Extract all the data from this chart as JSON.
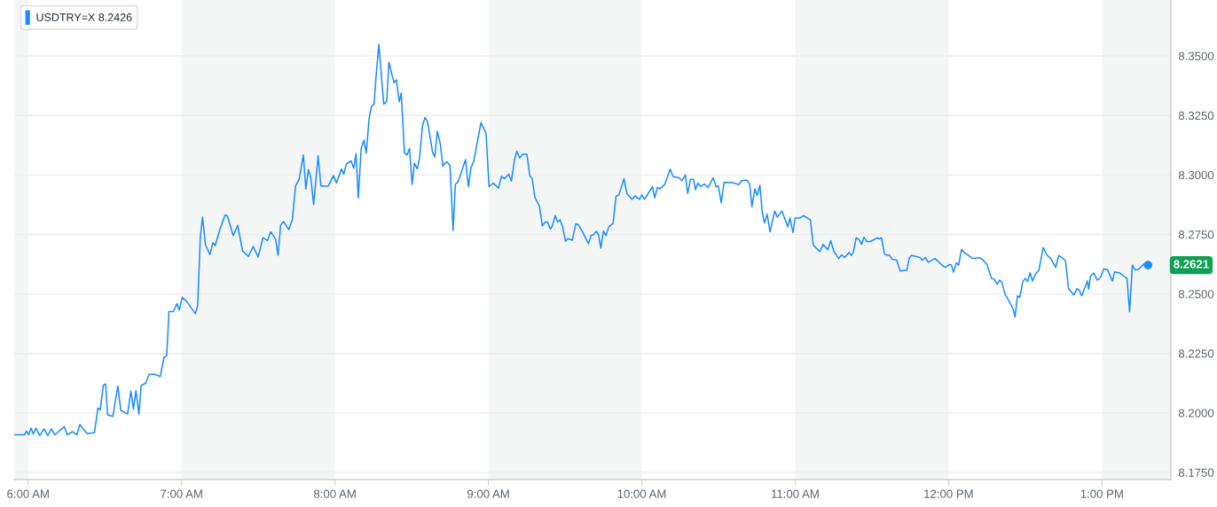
{
  "chart_data": {
    "type": "line",
    "xlim": [
      5.909,
      13.449
    ],
    "ylim": [
      8.172,
      8.3735
    ],
    "xticks": [
      {
        "value": 6,
        "label": "6:00 AM"
      },
      {
        "value": 7,
        "label": "7:00 AM"
      },
      {
        "value": 8,
        "label": "8:00 AM"
      },
      {
        "value": 9,
        "label": "9:00 AM"
      },
      {
        "value": 10,
        "label": "10:00 AM"
      },
      {
        "value": 11,
        "label": "11:00 AM"
      },
      {
        "value": 12,
        "label": "12:00 PM"
      },
      {
        "value": 13,
        "label": "1:00 PM"
      }
    ],
    "yticks": [
      {
        "value": 8.175,
        "label": "8.1750"
      },
      {
        "value": 8.2,
        "label": "8.2000"
      },
      {
        "value": 8.225,
        "label": "8.2250"
      },
      {
        "value": 8.25,
        "label": "8.2500"
      },
      {
        "value": 8.275,
        "label": "8.2750"
      },
      {
        "value": 8.3,
        "label": "8.3000"
      },
      {
        "value": 8.325,
        "label": "8.3250"
      },
      {
        "value": 8.35,
        "label": "8.3500"
      }
    ],
    "grid": "y",
    "legend": "top left",
    "bands": [
      {
        "axis": "x",
        "from": 5.909,
        "to": 6,
        "color": "#f4f5f5"
      },
      {
        "axis": "x",
        "from": 7,
        "to": 8,
        "color": "#f4f5f5"
      },
      {
        "axis": "x",
        "from": 9,
        "to": 10,
        "color": "#f4f5f5"
      },
      {
        "axis": "x",
        "from": 11,
        "to": 12,
        "color": "#f4f5f5"
      },
      {
        "axis": "x",
        "from": 13,
        "to": 13.449,
        "color": "#f4f5f5"
      }
    ],
    "annotations": [
      {
        "text": "8.2621",
        "x": 13.3,
        "y": 8.2621
      }
    ],
    "series": [
      {
        "name": "USDTRY=X 8.2426",
        "color": "#1a8cff",
        "x": [
          5.909,
          5.975,
          5.989,
          6.004,
          6.019,
          6.034,
          6.051,
          6.076,
          6.103,
          6.128,
          6.152,
          6.175,
          6.236,
          6.255,
          6.29,
          6.318,
          6.337,
          6.385,
          6.432,
          6.455,
          6.47,
          6.49,
          6.505,
          6.518,
          6.552,
          6.585,
          6.604,
          6.648,
          6.67,
          6.686,
          6.703,
          6.722,
          6.737,
          6.766,
          6.789,
          6.823,
          6.861,
          6.886,
          6.903,
          6.918,
          6.947,
          6.97,
          6.985,
          7.004,
          7.032,
          7.09,
          7.105,
          7.122,
          7.137,
          7.156,
          7.185,
          7.204,
          7.219,
          7.251,
          7.284,
          7.299,
          7.337,
          7.366,
          7.398,
          7.436,
          7.467,
          7.499,
          7.531,
          7.56,
          7.581,
          7.613,
          7.629,
          7.646,
          7.665,
          7.699,
          7.722,
          7.743,
          7.766,
          7.794,
          7.81,
          7.827,
          7.842,
          7.861,
          7.89,
          7.909,
          7.956,
          7.99,
          8.01,
          8.042,
          8.057,
          8.074,
          8.105,
          8.122,
          8.137,
          8.152,
          8.171,
          8.189,
          8.204,
          8.223,
          8.238,
          8.255,
          8.267,
          8.286,
          8.318,
          8.337,
          8.352,
          8.37,
          8.385,
          8.4,
          8.419,
          8.432,
          8.453,
          8.47,
          8.486,
          8.503,
          8.518,
          8.537,
          8.552,
          8.571,
          8.587,
          8.604,
          8.636,
          8.651,
          8.667,
          8.686,
          8.703,
          8.728,
          8.75,
          8.77,
          8.785,
          8.804,
          8.851,
          8.87,
          8.886,
          8.905,
          8.952,
          8.985,
          9.004,
          9.032,
          9.066,
          9.086,
          9.105,
          9.133,
          9.15,
          9.17,
          9.185,
          9.204,
          9.223,
          9.251,
          9.27,
          9.286,
          9.303,
          9.333,
          9.352,
          9.37,
          9.385,
          9.404,
          9.417,
          9.436,
          9.451,
          9.467,
          9.484,
          9.503,
          9.518,
          9.547,
          9.57,
          9.585,
          9.619,
          9.652,
          9.67,
          9.686,
          9.703,
          9.718,
          9.733,
          9.75,
          9.766,
          9.785,
          9.813,
          9.832,
          9.851,
          9.884,
          9.903,
          9.937,
          9.956,
          9.985,
          10.0,
          10.017,
          10.07,
          10.084,
          10.103,
          10.118,
          10.15,
          10.185,
          10.204,
          10.242,
          10.261,
          10.284,
          10.299,
          10.318,
          10.337,
          10.35,
          10.366,
          10.385,
          10.408,
          10.432,
          10.465,
          10.485,
          10.499,
          10.518,
          10.537,
          10.594,
          10.632,
          10.651,
          10.684,
          10.703,
          10.718,
          10.737,
          10.752,
          10.77,
          10.785,
          10.8,
          10.817,
          10.836,
          10.867,
          10.884,
          10.914,
          10.952,
          10.966,
          10.985,
          11.0,
          11.032,
          11.055,
          11.099,
          11.118,
          11.147,
          11.162,
          11.181,
          11.213,
          11.232,
          11.251,
          11.284,
          11.303,
          11.322,
          11.352,
          11.366,
          11.379,
          11.398,
          11.417,
          11.433,
          11.448,
          11.467,
          11.49,
          11.537,
          11.547,
          11.562,
          11.581,
          11.594,
          11.613,
          11.632,
          11.661,
          11.684,
          11.728,
          11.743,
          11.756,
          11.813,
          11.829,
          11.848,
          11.867,
          11.912,
          11.966,
          11.981,
          12.004,
          12.019,
          12.032,
          12.051,
          12.065,
          12.084,
          12.103,
          12.137,
          12.156,
          12.204,
          12.223,
          12.251,
          12.266,
          12.28,
          12.296,
          12.317,
          12.333,
          12.347,
          12.368,
          12.398,
          12.419,
          12.433,
          12.449,
          12.464,
          12.484,
          12.5,
          12.515,
          12.531,
          12.547,
          12.568,
          12.588,
          12.617,
          12.639,
          12.668,
          12.698,
          12.719,
          12.741,
          12.762,
          12.782,
          12.817,
          12.837,
          12.852,
          12.868,
          12.905,
          12.913,
          12.925,
          12.946,
          12.97,
          12.991,
          13.011,
          13.036,
          13.068,
          13.082,
          13.113,
          13.149,
          13.163,
          13.18,
          13.198,
          13.215,
          13.235,
          13.272,
          13.3
        ],
        "values": [
          8.1908,
          8.1908,
          8.1923,
          8.1908,
          8.1936,
          8.1911,
          8.1936,
          8.1905,
          8.1933,
          8.1905,
          8.1933,
          8.1908,
          8.1942,
          8.1908,
          8.1921,
          8.1908,
          8.1951,
          8.1913,
          8.1917,
          8.202,
          8.2013,
          8.2116,
          8.2122,
          8.1992,
          8.1985,
          8.2113,
          8.201,
          8.1995,
          8.2091,
          8.2016,
          8.2093,
          8.1995,
          8.2116,
          8.2124,
          8.2162,
          8.2162,
          8.2153,
          8.2233,
          8.224,
          8.2426,
          8.2426,
          8.2459,
          8.2432,
          8.2485,
          8.2469,
          8.2417,
          8.2451,
          8.2736,
          8.2823,
          8.2705,
          8.2665,
          8.2715,
          8.2703,
          8.2773,
          8.2832,
          8.2827,
          8.2745,
          8.2788,
          8.268,
          8.2658,
          8.2699,
          8.2655,
          8.2736,
          8.2724,
          8.2761,
          8.273,
          8.2662,
          8.2789,
          8.2804,
          8.277,
          8.2811,
          8.2953,
          8.2981,
          8.3084,
          8.2941,
          8.3022,
          8.2991,
          8.2876,
          8.308,
          8.2953,
          8.2953,
          8.2997,
          8.2966,
          8.3025,
          8.3003,
          8.3046,
          8.3059,
          8.3028,
          8.309,
          8.2904,
          8.3111,
          8.3146,
          8.3092,
          8.3239,
          8.3288,
          8.3298,
          8.3406,
          8.3549,
          8.3297,
          8.3309,
          8.3474,
          8.3425,
          8.3388,
          8.34,
          8.3307,
          8.3344,
          8.3092,
          8.3084,
          8.3111,
          8.296,
          8.3049,
          8.3025,
          8.3074,
          8.3208,
          8.3241,
          8.3223,
          8.3096,
          8.3075,
          8.3183,
          8.3133,
          8.3038,
          8.3055,
          8.304,
          8.2767,
          8.296,
          8.2972,
          8.3065,
          8.295,
          8.3028,
          8.3059,
          8.322,
          8.3174,
          8.2951,
          8.2966,
          8.2945,
          8.2994,
          8.2984,
          8.3003,
          8.2974,
          8.3062,
          8.31,
          8.3071,
          8.3087,
          8.3087,
          8.2997,
          8.2984,
          8.2906,
          8.2869,
          8.2786,
          8.2802,
          8.2802,
          8.2772,
          8.2786,
          8.2829,
          8.2802,
          8.2811,
          8.2782,
          8.2721,
          8.2732,
          8.2726,
          8.2794,
          8.2792,
          8.2755,
          8.2711,
          8.2746,
          8.2749,
          8.2763,
          8.2749,
          8.2693,
          8.2765,
          8.2745,
          8.2782,
          8.2796,
          8.291,
          8.2916,
          8.2984,
          8.2922,
          8.2897,
          8.2912,
          8.2897,
          8.2916,
          8.2897,
          8.295,
          8.2904,
          8.2948,
          8.2941,
          8.296,
          8.3024,
          8.2993,
          8.2988,
          8.2976,
          8.3,
          8.2922,
          8.2982,
          8.2982,
          8.2938,
          8.2966,
          8.2951,
          8.2962,
          8.2947,
          8.2988,
          8.295,
          8.2954,
          8.2883,
          8.2969,
          8.2968,
          8.2959,
          8.2976,
          8.2978,
          8.2963,
          8.2866,
          8.2941,
          8.2914,
          8.2956,
          8.2844,
          8.2798,
          8.2835,
          8.2761,
          8.2848,
          8.2823,
          8.2848,
          8.2782,
          8.2819,
          8.2758,
          8.2819,
          8.2819,
          8.2829,
          8.2811,
          8.2705,
          8.2686,
          8.2678,
          8.2708,
          8.2686,
          8.2724,
          8.268,
          8.2649,
          8.2664,
          8.2653,
          8.2674,
          8.2662,
          8.2674,
          8.2736,
          8.2727,
          8.2708,
          8.2738,
          8.272,
          8.272,
          8.2736,
          8.273,
          8.2736,
          8.267,
          8.2662,
          8.2664,
          8.2646,
          8.2643,
          8.2596,
          8.26,
          8.2649,
          8.2662,
          8.2653,
          8.2641,
          8.2653,
          8.2633,
          8.2649,
          8.2616,
          8.2612,
          8.2623,
          8.2621,
          8.2591,
          8.2631,
          8.2621,
          8.2686,
          8.2674,
          8.2658,
          8.2649,
          8.2652,
          8.2643,
          8.2622,
          8.2592,
          8.2565,
          8.2563,
          8.2541,
          8.2558,
          8.2549,
          8.2499,
          8.2465,
          8.2439,
          8.2403,
          8.2492,
          8.2485,
          8.2552,
          8.2565,
          8.2552,
          8.2589,
          8.2554,
          8.2585,
          8.2598,
          8.2695,
          8.2665,
          8.2647,
          8.2612,
          8.2661,
          8.2652,
          8.2639,
          8.2522,
          8.2496,
          8.2522,
          8.2515,
          8.2492,
          8.2554,
          8.2519,
          8.2574,
          8.2588,
          8.2557,
          8.257,
          8.2605,
          8.2602,
          8.2554,
          8.2592,
          8.2589,
          8.2572,
          8.2565,
          8.2425,
          8.2621,
          8.2602,
          8.2602,
          8.2625,
          8.2621
        ]
      }
    ]
  }
}
